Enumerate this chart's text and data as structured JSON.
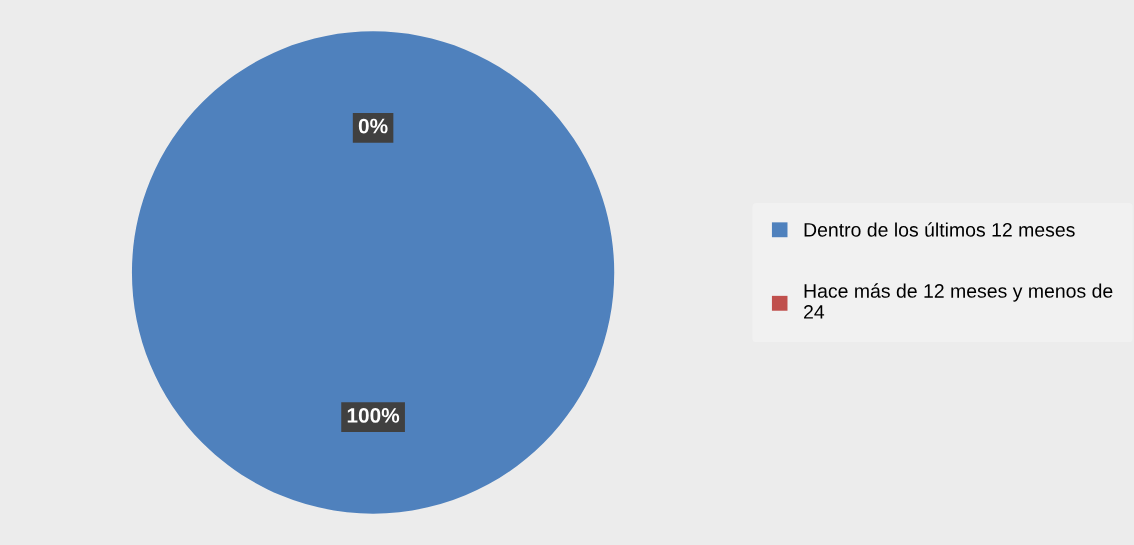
{
  "chart_data": {
    "type": "pie",
    "categories": [
      "Dentro de los últimos 12 meses",
      "Hace más de 12 meses y menos de 24"
    ],
    "values": [
      100,
      0
    ],
    "colors": [
      "#4f81bd",
      "#c0504d"
    ],
    "value_labels": [
      "100%",
      "0%"
    ],
    "legend": "right"
  }
}
